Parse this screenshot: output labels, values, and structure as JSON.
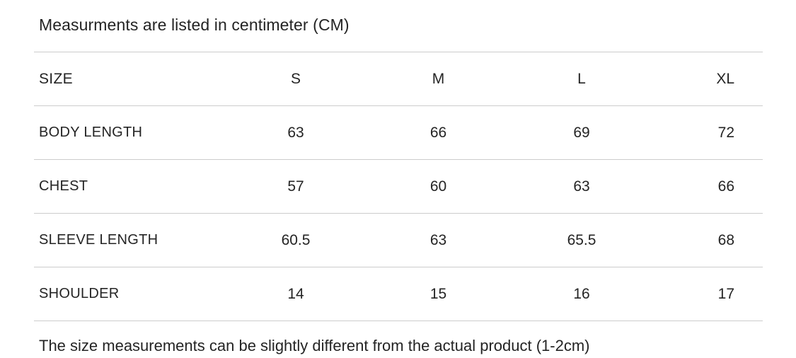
{
  "chart_data": {
    "type": "table",
    "title": "Measurments are listed in centimeter (CM)",
    "columns": [
      "SIZE",
      "S",
      "M",
      "L",
      "XL"
    ],
    "rows": [
      [
        "BODY LENGTH",
        "63",
        "66",
        "69",
        "72"
      ],
      [
        "CHEST",
        "57",
        "60",
        "63",
        "66"
      ],
      [
        "SLEEVE LENGTH",
        "60.5",
        "63",
        "65.5",
        "68"
      ],
      [
        "SHOULDER",
        "14",
        "15",
        "16",
        "17"
      ]
    ],
    "note": "The size measurements can be slightly different from the actual product (1-2cm)"
  },
  "colors": {
    "background": "#ffffff",
    "text": "#242424",
    "divider": "#cccccc"
  }
}
